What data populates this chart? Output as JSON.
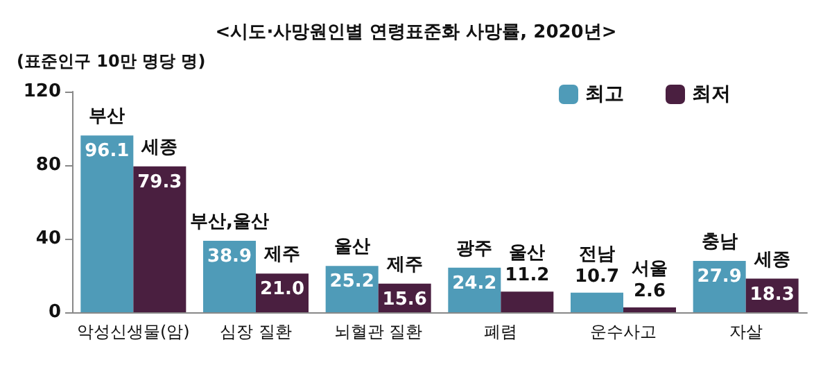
{
  "chart_data": {
    "type": "bar",
    "title": "<시도·사망원인별 연령표준화 사망률, 2020년>",
    "ylabel": "(표준인구 10만 명당 명)",
    "categories": [
      "악성신생물(암)",
      "심장 질환",
      "뇌혈관 질환",
      "폐렴",
      "운수사고",
      "자살"
    ],
    "series": [
      {
        "name": "최고",
        "color": "#4f9bb8",
        "values": [
          96.1,
          38.9,
          25.2,
          24.2,
          10.7,
          27.9
        ],
        "value_labels": [
          "96.1",
          "38.9",
          "25.2",
          "24.2",
          "10.7",
          "27.9"
        ]
      },
      {
        "name": "최저",
        "color": "#4a1f40",
        "values": [
          79.3,
          21.0,
          15.6,
          11.2,
          2.6,
          18.3
        ],
        "value_labels": [
          "79.3",
          "21.0",
          "15.6",
          "11.2",
          "2.6",
          "18.3"
        ]
      }
    ],
    "annotations": [
      {
        "text": "부산",
        "x": "악성신생물(암)",
        "y": 96.1
      },
      {
        "text": "세종",
        "x": "악성신생물(암)",
        "y": 79.3
      },
      {
        "text": "부산,울산",
        "x": "심장 질환",
        "y": 38.9
      },
      {
        "text": "제주",
        "x": "심장 질환",
        "y": 21.0
      },
      {
        "text": "울산",
        "x": "뇌혈관 질환",
        "y": 25.2
      },
      {
        "text": "제주",
        "x": "뇌혈관 질환",
        "y": 15.6
      },
      {
        "text": "광주",
        "x": "폐렴",
        "y": 24.2
      },
      {
        "text": "울산",
        "x": "폐렴",
        "y": 11.2
      },
      {
        "text": "전남",
        "x": "운수사고",
        "y": 10.7
      },
      {
        "text": "서울",
        "x": "운수사고",
        "y": 2.6
      },
      {
        "text": "충남",
        "x": "자살",
        "y": 27.9
      },
      {
        "text": "세종",
        "x": "자살",
        "y": 18.3
      }
    ],
    "ylim": [
      0,
      120
    ],
    "yticks": [
      0,
      40,
      80,
      120
    ],
    "grid": false,
    "legend": "top right"
  }
}
